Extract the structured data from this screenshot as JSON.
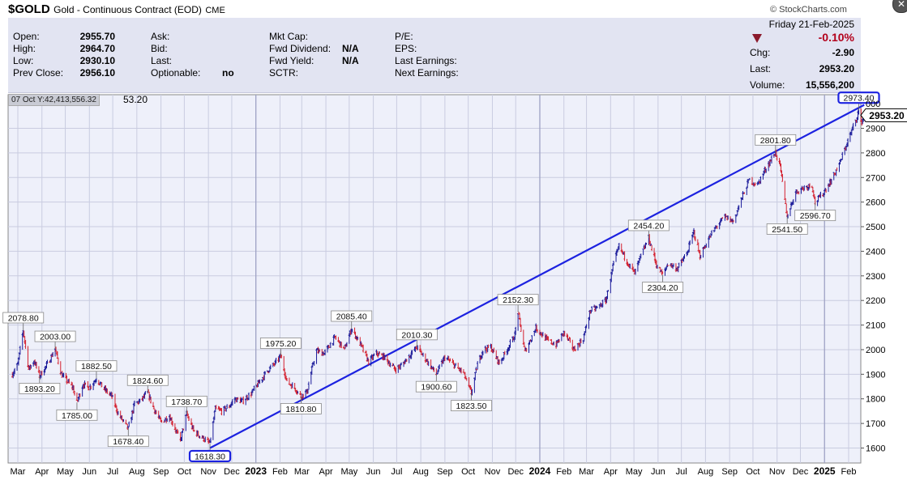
{
  "header": {
    "symbol": "$GOLD",
    "name": "Gold - Continuous Contract (EOD)",
    "exchange": "CME",
    "brand": "© StockCharts.com"
  },
  "quote": {
    "open_label": "Open:",
    "open": "2955.70",
    "high_label": "High:",
    "high": "2964.70",
    "low_label": "Low:",
    "low": "2930.10",
    "prev_close_label": "Prev Close:",
    "prev_close": "2956.10",
    "ask_label": "Ask:",
    "bid_label": "Bid:",
    "last_label_mid": "Last:",
    "optionable_label": "Optionable:",
    "optionable": "no",
    "mkt_cap_label": "Mkt Cap:",
    "fwd_dividend_label": "Fwd Dividend:",
    "fwd_dividend": "N/A",
    "fwd_yield_label": "Fwd Yield:",
    "fwd_yield": "N/A",
    "sctr_label": "SCTR:",
    "pe_label": "P/E:",
    "eps_label": "EPS:",
    "last_earnings_label": "Last Earnings:",
    "next_earnings_label": "Next Earnings:",
    "date": "Friday  21-Feb-2025",
    "change_pct": "-0.10%",
    "chg_label": "Chg:",
    "chg": "-2.90",
    "last_label": "Last:",
    "last": "2953.20",
    "volume_label": "Volume:",
    "volume": "15,556,200",
    "down_color": "#b3001b"
  },
  "cursor_readout": "07 Oct Y:42,413,556.32",
  "last_small": "53.20",
  "chart_data": {
    "type": "line",
    "title": "Gold - Continuous Contract (EOD)",
    "xlabel": "",
    "ylabel": "",
    "ylim": [
      1550,
      3030
    ],
    "y_ticks": [
      1600,
      1700,
      1800,
      1900,
      2000,
      2100,
      2200,
      2300,
      2400,
      2500,
      2600,
      2700,
      2800,
      2900
    ],
    "y_tick_labels": [
      "1600",
      "1700",
      "1800",
      "1900",
      "2000",
      "2100",
      "2200",
      "2300",
      "2400",
      "2500",
      "2600",
      "2700",
      "2800",
      "2900"
    ],
    "y_top_partial_label": "000",
    "x_labels": [
      {
        "label": "Mar",
        "year": 2022,
        "month": 3,
        "bold": false
      },
      {
        "label": "Apr",
        "year": 2022,
        "month": 4,
        "bold": false
      },
      {
        "label": "May",
        "year": 2022,
        "month": 5,
        "bold": false
      },
      {
        "label": "Jun",
        "year": 2022,
        "month": 6,
        "bold": false
      },
      {
        "label": "Jul",
        "year": 2022,
        "month": 7,
        "bold": false
      },
      {
        "label": "Aug",
        "year": 2022,
        "month": 8,
        "bold": false
      },
      {
        "label": "Sep",
        "year": 2022,
        "month": 9,
        "bold": false
      },
      {
        "label": "Oct",
        "year": 2022,
        "month": 10,
        "bold": false
      },
      {
        "label": "Nov",
        "year": 2022,
        "month": 11,
        "bold": false
      },
      {
        "label": "Dec",
        "year": 2022,
        "month": 12,
        "bold": false
      },
      {
        "label": "2023",
        "year": 2023,
        "month": 1,
        "bold": true
      },
      {
        "label": "Feb",
        "year": 2023,
        "month": 2,
        "bold": false
      },
      {
        "label": "Mar",
        "year": 2023,
        "month": 3,
        "bold": false
      },
      {
        "label": "Apr",
        "year": 2023,
        "month": 4,
        "bold": false
      },
      {
        "label": "May",
        "year": 2023,
        "month": 5,
        "bold": false
      },
      {
        "label": "Jun",
        "year": 2023,
        "month": 6,
        "bold": false
      },
      {
        "label": "Jul",
        "year": 2023,
        "month": 7,
        "bold": false
      },
      {
        "label": "Aug",
        "year": 2023,
        "month": 8,
        "bold": false
      },
      {
        "label": "Sep",
        "year": 2023,
        "month": 9,
        "bold": false
      },
      {
        "label": "Oct",
        "year": 2023,
        "month": 10,
        "bold": false
      },
      {
        "label": "Nov",
        "year": 2023,
        "month": 11,
        "bold": false
      },
      {
        "label": "Dec",
        "year": 2023,
        "month": 12,
        "bold": false
      },
      {
        "label": "2024",
        "year": 2024,
        "month": 1,
        "bold": true
      },
      {
        "label": "Feb",
        "year": 2024,
        "month": 2,
        "bold": false
      },
      {
        "label": "Mar",
        "year": 2024,
        "month": 3,
        "bold": false
      },
      {
        "label": "Apr",
        "year": 2024,
        "month": 4,
        "bold": false
      },
      {
        "label": "May",
        "year": 2024,
        "month": 5,
        "bold": false
      },
      {
        "label": "Jun",
        "year": 2024,
        "month": 6,
        "bold": false
      },
      {
        "label": "Jul",
        "year": 2024,
        "month": 7,
        "bold": false
      },
      {
        "label": "Aug",
        "year": 2024,
        "month": 8,
        "bold": false
      },
      {
        "label": "Sep",
        "year": 2024,
        "month": 9,
        "bold": false
      },
      {
        "label": "Oct",
        "year": 2024,
        "month": 10,
        "bold": false
      },
      {
        "label": "Nov",
        "year": 2024,
        "month": 11,
        "bold": false
      },
      {
        "label": "Dec",
        "year": 2024,
        "month": 12,
        "bold": false
      },
      {
        "label": "2025",
        "year": 2025,
        "month": 1,
        "bold": true
      },
      {
        "label": "Feb",
        "year": 2025,
        "month": 2,
        "bold": false
      }
    ],
    "price_series": [
      [
        "2022-02-22",
        1900
      ],
      [
        "2022-03-01",
        1940
      ],
      [
        "2022-03-08",
        2078.8
      ],
      [
        "2022-03-15",
        1920
      ],
      [
        "2022-03-22",
        1955
      ],
      [
        "2022-03-29",
        1893.2
      ],
      [
        "2022-04-05",
        1925
      ],
      [
        "2022-04-12",
        1965
      ],
      [
        "2022-04-18",
        2003.0
      ],
      [
        "2022-04-26",
        1900
      ],
      [
        "2022-05-04",
        1870
      ],
      [
        "2022-05-11",
        1845
      ],
      [
        "2022-05-16",
        1785.0
      ],
      [
        "2022-05-24",
        1860
      ],
      [
        "2022-06-01",
        1845
      ],
      [
        "2022-06-10",
        1882.5
      ],
      [
        "2022-06-20",
        1840
      ],
      [
        "2022-06-30",
        1810
      ],
      [
        "2022-07-08",
        1740
      ],
      [
        "2022-07-21",
        1678.4
      ],
      [
        "2022-07-29",
        1780
      ],
      [
        "2022-08-05",
        1790
      ],
      [
        "2022-08-15",
        1824.6
      ],
      [
        "2022-08-23",
        1760
      ],
      [
        "2022-09-01",
        1705
      ],
      [
        "2022-09-12",
        1730
      ],
      [
        "2022-09-26",
        1630
      ],
      [
        "2022-10-04",
        1738.7
      ],
      [
        "2022-10-13",
        1670
      ],
      [
        "2022-10-21",
        1650
      ],
      [
        "2022-11-03",
        1618.3
      ],
      [
        "2022-11-10",
        1760
      ],
      [
        "2022-11-18",
        1750
      ],
      [
        "2022-11-28",
        1770
      ],
      [
        "2022-12-05",
        1800
      ],
      [
        "2022-12-15",
        1790
      ],
      [
        "2022-12-27",
        1825
      ],
      [
        "2023-01-06",
        1870
      ],
      [
        "2023-01-16",
        1915
      ],
      [
        "2023-01-26",
        1945
      ],
      [
        "2023-02-02",
        1975.2
      ],
      [
        "2023-02-10",
        1870
      ],
      [
        "2023-02-20",
        1845
      ],
      [
        "2023-02-28",
        1810.8
      ],
      [
        "2023-03-08",
        1830
      ],
      [
        "2023-03-14",
        1920
      ],
      [
        "2023-03-20",
        1995
      ],
      [
        "2023-03-30",
        1985
      ],
      [
        "2023-04-13",
        2050
      ],
      [
        "2023-04-25",
        2000
      ],
      [
        "2023-05-04",
        2085.4
      ],
      [
        "2023-05-15",
        2025
      ],
      [
        "2023-05-26",
        1950
      ],
      [
        "2023-06-05",
        1985
      ],
      [
        "2023-06-15",
        1970
      ],
      [
        "2023-06-29",
        1920
      ],
      [
        "2023-07-07",
        1935
      ],
      [
        "2023-07-20",
        1985
      ],
      [
        "2023-07-27",
        2010.3
      ],
      [
        "2023-08-10",
        1950
      ],
      [
        "2023-08-21",
        1900.6
      ],
      [
        "2023-09-01",
        1970
      ],
      [
        "2023-09-14",
        1935
      ],
      [
        "2023-09-25",
        1905
      ],
      [
        "2023-10-05",
        1823.5
      ],
      [
        "2023-10-13",
        1940
      ],
      [
        "2023-10-20",
        2000
      ],
      [
        "2023-10-30",
        2010
      ],
      [
        "2023-11-10",
        1945
      ],
      [
        "2023-11-20",
        2000
      ],
      [
        "2023-11-30",
        2060
      ],
      [
        "2023-12-04",
        2152.3
      ],
      [
        "2023-12-13",
        1990
      ],
      [
        "2023-12-27",
        2090
      ],
      [
        "2024-01-10",
        2040
      ],
      [
        "2024-01-22",
        2020
      ],
      [
        "2024-02-01",
        2070
      ],
      [
        "2024-02-14",
        2000
      ],
      [
        "2024-02-26",
        2045
      ],
      [
        "2024-03-06",
        2160
      ],
      [
        "2024-03-15",
        2170
      ],
      [
        "2024-03-26",
        2200
      ],
      [
        "2024-04-05",
        2350
      ],
      [
        "2024-04-12",
        2420
      ],
      [
        "2024-04-22",
        2360
      ],
      [
        "2024-05-02",
        2310
      ],
      [
        "2024-05-10",
        2380
      ],
      [
        "2024-05-20",
        2454.2
      ],
      [
        "2024-05-30",
        2345
      ],
      [
        "2024-06-07",
        2304.2
      ],
      [
        "2024-06-14",
        2350
      ],
      [
        "2024-06-26",
        2330
      ],
      [
        "2024-07-08",
        2390
      ],
      [
        "2024-07-17",
        2480
      ],
      [
        "2024-07-25",
        2380
      ],
      [
        "2024-08-05",
        2450
      ],
      [
        "2024-08-15",
        2500
      ],
      [
        "2024-08-26",
        2540
      ],
      [
        "2024-09-06",
        2520
      ],
      [
        "2024-09-16",
        2610
      ],
      [
        "2024-09-26",
        2690
      ],
      [
        "2024-10-07",
        2670
      ],
      [
        "2024-10-18",
        2740
      ],
      [
        "2024-10-30",
        2801.8
      ],
      [
        "2024-11-05",
        2745
      ],
      [
        "2024-11-14",
        2541.5
      ],
      [
        "2024-11-25",
        2640
      ],
      [
        "2024-12-06",
        2660
      ],
      [
        "2024-12-16",
        2670
      ],
      [
        "2024-12-20",
        2596.7
      ],
      [
        "2024-12-31",
        2640
      ],
      [
        "2025-01-10",
        2690
      ],
      [
        "2025-01-21",
        2760
      ],
      [
        "2025-01-30",
        2840
      ],
      [
        "2025-02-07",
        2905
      ],
      [
        "2025-02-11",
        2940
      ],
      [
        "2025-02-14",
        2973.4
      ],
      [
        "2025-02-17",
        2920
      ],
      [
        "2025-02-21",
        2953.2
      ]
    ],
    "annotations": [
      {
        "label": "2078.80",
        "date": "2022-03-08",
        "value": 2078.8,
        "pos": "above",
        "boxed": false
      },
      {
        "label": "1893.20",
        "date": "2022-03-29",
        "value": 1893.2,
        "pos": "below",
        "boxed": false
      },
      {
        "label": "2003.00",
        "date": "2022-04-18",
        "value": 2003.0,
        "pos": "above",
        "boxed": false
      },
      {
        "label": "1785.00",
        "date": "2022-05-16",
        "value": 1785.0,
        "pos": "below",
        "boxed": false
      },
      {
        "label": "1882.50",
        "date": "2022-06-10",
        "value": 1882.5,
        "pos": "above",
        "boxed": false
      },
      {
        "label": "1678.40",
        "date": "2022-07-21",
        "value": 1678.4,
        "pos": "below",
        "boxed": false
      },
      {
        "label": "1824.60",
        "date": "2022-08-15",
        "value": 1824.6,
        "pos": "above",
        "boxed": false
      },
      {
        "label": "1738.70",
        "date": "2022-10-04",
        "value": 1738.7,
        "pos": "above",
        "boxed": false
      },
      {
        "label": "1618.30",
        "date": "2022-11-03",
        "value": 1618.3,
        "pos": "below",
        "boxed": true
      },
      {
        "label": "1975.20",
        "date": "2023-02-02",
        "value": 1975.2,
        "pos": "above",
        "boxed": false
      },
      {
        "label": "1810.80",
        "date": "2023-02-28",
        "value": 1810.8,
        "pos": "below",
        "boxed": false
      },
      {
        "label": "2085.40",
        "date": "2023-05-04",
        "value": 2085.4,
        "pos": "above",
        "boxed": false
      },
      {
        "label": "2010.30",
        "date": "2023-07-27",
        "value": 2010.3,
        "pos": "above",
        "boxed": false
      },
      {
        "label": "1900.60",
        "date": "2023-08-21",
        "value": 1900.6,
        "pos": "below",
        "boxed": false
      },
      {
        "label": "1823.50",
        "date": "2023-10-05",
        "value": 1823.5,
        "pos": "below",
        "boxed": false
      },
      {
        "label": "2152.30",
        "date": "2023-12-04",
        "value": 2152.3,
        "pos": "above",
        "boxed": false
      },
      {
        "label": "2454.20",
        "date": "2024-05-20",
        "value": 2454.2,
        "pos": "above",
        "boxed": false
      },
      {
        "label": "2304.20",
        "date": "2024-06-07",
        "value": 2304.2,
        "pos": "below",
        "boxed": false
      },
      {
        "label": "2801.80",
        "date": "2024-10-30",
        "value": 2801.8,
        "pos": "above",
        "boxed": false
      },
      {
        "label": "2541.50",
        "date": "2024-11-14",
        "value": 2541.5,
        "pos": "below",
        "boxed": false
      },
      {
        "label": "2596.70",
        "date": "2024-12-20",
        "value": 2596.7,
        "pos": "below",
        "boxed": false
      },
      {
        "label": "2973.40",
        "date": "2025-02-14",
        "value": 2973.4,
        "pos": "above",
        "boxed": true
      }
    ],
    "trendline": {
      "from": [
        "2022-11-03",
        1600
      ],
      "to": [
        "2025-02-21",
        2995
      ],
      "color": "#1c22e0"
    },
    "last_price_label": "2953.20",
    "last_price_value": 2953.2,
    "colors": {
      "up": "#1a1a9a",
      "down": "#d4202f",
      "grid": "#c9cce0",
      "plot_bg": "#eef0fa",
      "axis_text": "#000000"
    },
    "grid": true
  }
}
